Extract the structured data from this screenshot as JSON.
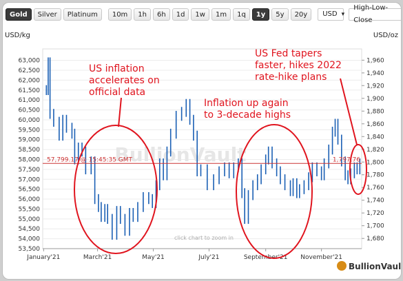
{
  "toolbar": {
    "metals": [
      "Gold",
      "Silver",
      "Platinum"
    ],
    "active_metal": "Gold",
    "ranges": [
      "10m",
      "1h",
      "6h",
      "1d",
      "1w",
      "1m",
      "1q",
      "1y",
      "5y",
      "20y"
    ],
    "active_range": "1y",
    "currency": "USD",
    "mode": "High-Low-Close"
  },
  "chart_data": {
    "type": "line",
    "left_axis_label": "USD/kg",
    "right_axis_label": "USD/oz",
    "left_ylim": [
      53500,
      63300
    ],
    "right_ylim": [
      1664,
      1969
    ],
    "left_ticks": [
      "63,000",
      "62,500",
      "62,000",
      "61,500",
      "61,000",
      "60,500",
      "60,000",
      "59,500",
      "59,000",
      "58,500",
      "58,000",
      "57,500",
      "57,000",
      "56,500",
      "56,000",
      "55,500",
      "55,000",
      "54,500",
      "54,000",
      "53,500"
    ],
    "left_tick_values": [
      63000,
      62500,
      62000,
      61500,
      61000,
      60500,
      60000,
      59500,
      59000,
      58500,
      58000,
      57500,
      57000,
      56500,
      56000,
      55500,
      55000,
      54500,
      54000,
      53500
    ],
    "right_ticks": [
      "1,960",
      "1,940",
      "1,920",
      "1,900",
      "1,880",
      "1,860",
      "1,840",
      "1,820",
      "1,800",
      "1,780",
      "1,760",
      "1,740",
      "1,720",
      "1,700",
      "1,680"
    ],
    "right_tick_values": [
      1960,
      1940,
      1920,
      1900,
      1880,
      1860,
      1840,
      1820,
      1800,
      1780,
      1760,
      1740,
      1720,
      1700,
      1680
    ],
    "x_labels": [
      "January'21",
      "March'21",
      "May'21",
      "July'21",
      "September'21",
      "November'21"
    ],
    "x_label_dates": [
      "2021-01-01",
      "2021-03-01",
      "2021-05-01",
      "2021-07-01",
      "2021-09-01",
      "2021-11-01"
    ],
    "x_start": "2020-12-31",
    "x_end": "2021-12-15",
    "series": [
      {
        "color": "#1a5fb4",
        "points": [
          [
            "2021-01-04",
            61500
          ],
          [
            "2021-01-06",
            62900
          ],
          [
            "2021-01-08",
            60300
          ],
          [
            "2021-01-12",
            59900
          ],
          [
            "2021-01-18",
            59200
          ],
          [
            "2021-01-22",
            60000
          ],
          [
            "2021-01-26",
            59600
          ],
          [
            "2021-02-01",
            59300
          ],
          [
            "2021-02-04",
            58000
          ],
          [
            "2021-02-08",
            58600
          ],
          [
            "2021-02-12",
            58400
          ],
          [
            "2021-02-16",
            57500
          ],
          [
            "2021-02-22",
            57900
          ],
          [
            "2021-02-26",
            56000
          ],
          [
            "2021-03-02",
            55600
          ],
          [
            "2021-03-05",
            55100
          ],
          [
            "2021-03-09",
            55500
          ],
          [
            "2021-03-12",
            55000
          ],
          [
            "2021-03-17",
            54200
          ],
          [
            "2021-03-22",
            55400
          ],
          [
            "2021-03-26",
            55000
          ],
          [
            "2021-03-31",
            54400
          ],
          [
            "2021-04-05",
            55300
          ],
          [
            "2021-04-09",
            55100
          ],
          [
            "2021-04-14",
            55600
          ],
          [
            "2021-04-20",
            56100
          ],
          [
            "2021-04-26",
            56000
          ],
          [
            "2021-04-30",
            55800
          ],
          [
            "2021-05-04",
            56700
          ],
          [
            "2021-05-08",
            57800
          ],
          [
            "2021-05-12",
            57200
          ],
          [
            "2021-05-16",
            58400
          ],
          [
            "2021-05-20",
            59300
          ],
          [
            "2021-05-26",
            60200
          ],
          [
            "2021-06-01",
            60400
          ],
          [
            "2021-06-06",
            60800
          ],
          [
            "2021-06-10",
            60000
          ],
          [
            "2021-06-14",
            59200
          ],
          [
            "2021-06-18",
            57400
          ],
          [
            "2021-06-22",
            57500
          ],
          [
            "2021-06-29",
            56700
          ],
          [
            "2021-07-06",
            57000
          ],
          [
            "2021-07-12",
            57400
          ],
          [
            "2021-07-18",
            57600
          ],
          [
            "2021-07-23",
            57300
          ],
          [
            "2021-07-28",
            57600
          ],
          [
            "2021-08-02",
            57800
          ],
          [
            "2021-08-06",
            56300
          ],
          [
            "2021-08-09",
            55000
          ],
          [
            "2021-08-13",
            56200
          ],
          [
            "2021-08-18",
            56700
          ],
          [
            "2021-08-23",
            57000
          ],
          [
            "2021-08-27",
            57500
          ],
          [
            "2021-09-01",
            58000
          ],
          [
            "2021-09-04",
            58400
          ],
          [
            "2021-09-08",
            57800
          ],
          [
            "2021-09-13",
            57400
          ],
          [
            "2021-09-17",
            57000
          ],
          [
            "2021-09-22",
            56700
          ],
          [
            "2021-09-28",
            56400
          ],
          [
            "2021-10-01",
            56800
          ],
          [
            "2021-10-05",
            56300
          ],
          [
            "2021-10-08",
            56500
          ],
          [
            "2021-10-13",
            56700
          ],
          [
            "2021-10-18",
            57100
          ],
          [
            "2021-10-22",
            57600
          ],
          [
            "2021-10-27",
            57400
          ],
          [
            "2021-11-01",
            57200
          ],
          [
            "2021-11-04",
            57800
          ],
          [
            "2021-11-09",
            58500
          ],
          [
            "2021-11-13",
            59400
          ],
          [
            "2021-11-16",
            59800
          ],
          [
            "2021-11-19",
            59000
          ],
          [
            "2021-11-23",
            57900
          ],
          [
            "2021-11-27",
            57200
          ],
          [
            "2021-11-30",
            57000
          ],
          [
            "2021-12-03",
            57300
          ],
          [
            "2021-12-07",
            57600
          ],
          [
            "2021-12-10",
            57500
          ],
          [
            "2021-12-13",
            57800
          ]
        ]
      }
    ],
    "reference_line": {
      "value": 57799.17,
      "label": "57,799.17 @ 15:45:35 GMT",
      "right_label": "1,797.76",
      "color": "#cc3333"
    },
    "annotations": [
      {
        "text": [
          "US inflation",
          "accelerates on",
          "official data"
        ]
      },
      {
        "text": [
          "Inflation up again",
          "to 3-decade highs"
        ]
      },
      {
        "text": [
          "US Fed tapers",
          "faster, hikes 2022",
          "rate-hike plans"
        ]
      }
    ],
    "watermark": "BullionVault",
    "hint": "click chart to zoom in",
    "brand": "BullionVault"
  }
}
